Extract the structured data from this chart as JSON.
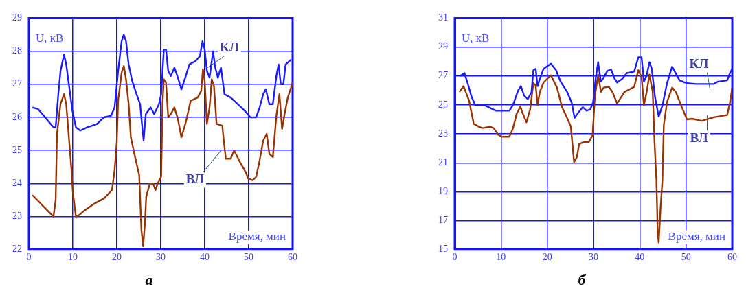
{
  "chart_data": [
    {
      "type": "line",
      "title": "а",
      "xlabel": "Время, мин",
      "ylabel": "U, кВ",
      "xlim": [
        0,
        60
      ],
      "xticks": [
        0,
        10,
        20,
        30,
        40,
        50,
        60
      ],
      "ylim": [
        22,
        29
      ],
      "yticks": [
        22,
        23,
        24,
        25,
        26,
        27,
        28,
        29
      ],
      "grid": true,
      "legend": false,
      "marker": "none",
      "line_style": "solid",
      "series": [
        {
          "name": "КЛ",
          "color": "#1a1aff",
          "x": [
            0.8,
            2.1,
            3.7,
            5.6,
            6.1,
            6.7,
            7.2,
            8.0,
            8.5,
            9.1,
            9.9,
            10.7,
            11.7,
            13.3,
            14.4,
            15.5,
            17.1,
            18.7,
            19.5,
            20.3,
            21.1,
            21.6,
            22.1,
            22.7,
            23.5,
            24.5,
            25.3,
            25.8,
            26.1,
            26.6,
            27.7,
            28.5,
            29.6,
            30.1,
            30.7,
            31.2,
            31.7,
            32.3,
            33.1,
            33.9,
            34.7,
            35.7,
            36.5,
            37.9,
            38.9,
            39.5,
            40.0,
            40.5,
            41.1,
            41.9,
            42.4,
            43.0,
            43.7,
            44.5,
            45.9,
            47.5,
            49.1,
            50.4,
            51.7,
            52.5,
            53.3,
            53.9,
            54.7,
            55.5,
            56.3,
            56.8,
            57.3,
            57.9,
            58.4,
            59.7
          ],
          "values": [
            26.3,
            26.25,
            26.0,
            25.7,
            25.7,
            26.7,
            27.4,
            27.9,
            27.6,
            27.0,
            26.2,
            25.7,
            25.6,
            25.7,
            25.75,
            25.8,
            26.0,
            26.05,
            26.3,
            27.4,
            28.3,
            28.5,
            28.3,
            27.6,
            27.1,
            26.7,
            26.4,
            25.7,
            25.3,
            26.1,
            26.3,
            26.1,
            26.4,
            26.7,
            28.05,
            28.05,
            27.4,
            27.25,
            27.5,
            27.2,
            26.85,
            27.25,
            27.6,
            27.7,
            27.85,
            28.3,
            28.05,
            27.4,
            27.2,
            28.0,
            27.5,
            27.2,
            27.5,
            26.7,
            26.6,
            26.4,
            26.2,
            26.0,
            26.0,
            26.3,
            26.7,
            26.85,
            26.4,
            26.4,
            27.25,
            27.6,
            27.0,
            27.0,
            27.6,
            27.75
          ]
        },
        {
          "name": "ВЛ",
          "color": "#993300",
          "x": [
            0.8,
            5.6,
            6.1,
            6.4,
            7.2,
            8.0,
            8.5,
            9.1,
            9.7,
            10.0,
            10.7,
            11.5,
            12.8,
            15.0,
            17.1,
            18.9,
            19.5,
            20.0,
            20.3,
            21.1,
            21.6,
            22.1,
            22.7,
            23.2,
            24.0,
            25.1,
            25.6,
            26.0,
            26.4,
            26.7,
            27.5,
            28.3,
            28.8,
            29.3,
            30.1,
            30.4,
            30.7,
            31.2,
            31.7,
            32.3,
            33.1,
            33.9,
            34.7,
            35.7,
            36.8,
            38.4,
            39.2,
            39.6,
            40.0,
            40.5,
            41.1,
            41.6,
            42.1,
            42.7,
            44.0,
            44.3,
            44.8,
            45.9,
            46.7,
            48.0,
            49.3,
            49.9,
            50.9,
            51.7,
            52.5,
            53.3,
            54.1,
            54.7,
            55.5,
            56.3,
            57.0,
            57.6,
            58.1,
            58.9,
            60.0
          ],
          "values": [
            23.65,
            23.0,
            23.5,
            25.5,
            26.4,
            26.7,
            26.4,
            25.4,
            24.4,
            23.75,
            23.0,
            23.05,
            23.2,
            23.4,
            23.55,
            23.8,
            24.4,
            25.25,
            26.5,
            27.35,
            27.55,
            27.15,
            26.4,
            25.4,
            24.9,
            24.25,
            22.6,
            22.1,
            22.8,
            23.6,
            24.0,
            24.0,
            23.8,
            24.0,
            24.2,
            26.4,
            27.15,
            27.05,
            26.0,
            26.1,
            26.3,
            25.95,
            25.4,
            25.85,
            26.5,
            26.6,
            26.8,
            27.45,
            27.1,
            25.8,
            26.3,
            27.15,
            26.95,
            25.8,
            25.75,
            25.35,
            24.75,
            24.75,
            25.0,
            24.65,
            24.35,
            24.15,
            24.1,
            24.2,
            24.7,
            25.3,
            25.5,
            24.9,
            24.8,
            26.05,
            26.7,
            25.65,
            26.05,
            26.6,
            27.05
          ]
        }
      ]
    },
    {
      "type": "line",
      "title": "б",
      "xlabel": "Время, мин",
      "ylabel": "U, кВ",
      "xlim": [
        0,
        60
      ],
      "xticks": [
        0,
        10,
        20,
        30,
        40,
        50,
        60
      ],
      "ylim": [
        15,
        31
      ],
      "yticks": [
        15,
        17,
        19,
        21,
        23,
        25,
        27,
        29,
        31
      ],
      "grid": true,
      "legend": false,
      "marker": "none",
      "line_style": "solid",
      "series": [
        {
          "name": "КЛ",
          "color": "#1a1aff",
          "x": [
            1.2,
            2.1,
            2.8,
            3.6,
            4.4,
            6.3,
            7.3,
            8.9,
            11.8,
            12.6,
            13.7,
            14.3,
            15.0,
            15.8,
            16.6,
            17.0,
            17.5,
            17.9,
            18.4,
            19.2,
            20.8,
            21.9,
            22.9,
            24.3,
            25.3,
            25.9,
            26.9,
            27.7,
            28.5,
            29.3,
            29.9,
            30.5,
            31.0,
            31.6,
            32.2,
            33.0,
            33.8,
            34.6,
            35.1,
            36.2,
            37.2,
            38.8,
            39.7,
            40.4,
            40.9,
            41.5,
            42.1,
            42.6,
            43.3,
            44.1,
            44.9,
            45.9,
            47.0,
            47.5,
            48.6,
            50.2,
            52.3,
            56.0,
            56.8,
            58.9,
            59.5,
            60.0
          ],
          "values": [
            27.0,
            27.2,
            26.5,
            25.6,
            25.0,
            25.0,
            24.85,
            24.6,
            24.6,
            25.0,
            26.0,
            26.3,
            25.65,
            25.4,
            25.9,
            27.4,
            27.5,
            26.3,
            26.8,
            27.5,
            27.85,
            27.4,
            26.6,
            25.9,
            25.15,
            24.1,
            24.55,
            24.85,
            24.6,
            24.7,
            25.15,
            26.9,
            27.95,
            26.6,
            26.9,
            27.35,
            27.45,
            26.8,
            26.55,
            26.8,
            27.2,
            27.3,
            28.3,
            28.3,
            26.6,
            27.05,
            27.95,
            27.5,
            25.55,
            24.2,
            24.95,
            26.5,
            27.65,
            27.35,
            26.7,
            26.5,
            26.45,
            26.45,
            26.6,
            26.7,
            27.2,
            27.5
          ]
        },
        {
          "name": "ВЛ",
          "color": "#993300",
          "x": [
            1.0,
            1.9,
            3.1,
            3.6,
            4.1,
            5.2,
            6.0,
            7.6,
            8.4,
            9.4,
            10.2,
            11.8,
            12.6,
            13.4,
            14.2,
            14.7,
            15.5,
            16.3,
            17.0,
            17.5,
            17.9,
            18.4,
            19.2,
            20.8,
            22.1,
            23.2,
            24.3,
            25.1,
            25.3,
            25.8,
            26.4,
            26.9,
            28.0,
            29.0,
            29.8,
            30.3,
            31.0,
            31.6,
            32.2,
            33.3,
            34.1,
            35.1,
            36.7,
            38.8,
            39.7,
            40.4,
            40.9,
            41.5,
            42.1,
            42.8,
            43.2,
            43.6,
            43.9,
            44.1,
            44.5,
            44.9,
            45.2,
            45.9,
            47.0,
            47.8,
            49.1,
            50.2,
            51.3,
            53.4,
            56.0,
            58.9,
            59.5,
            60.0
          ],
          "values": [
            25.9,
            26.3,
            25.3,
            24.5,
            23.7,
            23.5,
            23.4,
            23.5,
            23.4,
            22.95,
            22.8,
            22.8,
            23.4,
            24.4,
            24.9,
            24.4,
            23.8,
            24.7,
            26.5,
            26.35,
            25.0,
            25.9,
            26.55,
            27.05,
            26.2,
            24.85,
            24.1,
            23.5,
            22.8,
            21.05,
            21.4,
            22.3,
            22.45,
            22.45,
            22.9,
            25.6,
            27.1,
            25.9,
            26.2,
            26.25,
            25.9,
            25.1,
            25.9,
            26.25,
            27.4,
            26.9,
            25.0,
            25.9,
            27.1,
            25.9,
            22.4,
            19.8,
            16.0,
            15.5,
            17.9,
            19.8,
            23.6,
            25.2,
            26.2,
            25.9,
            24.85,
            24.0,
            24.05,
            23.9,
            24.15,
            24.3,
            25.15,
            26.2
          ]
        }
      ]
    }
  ]
}
